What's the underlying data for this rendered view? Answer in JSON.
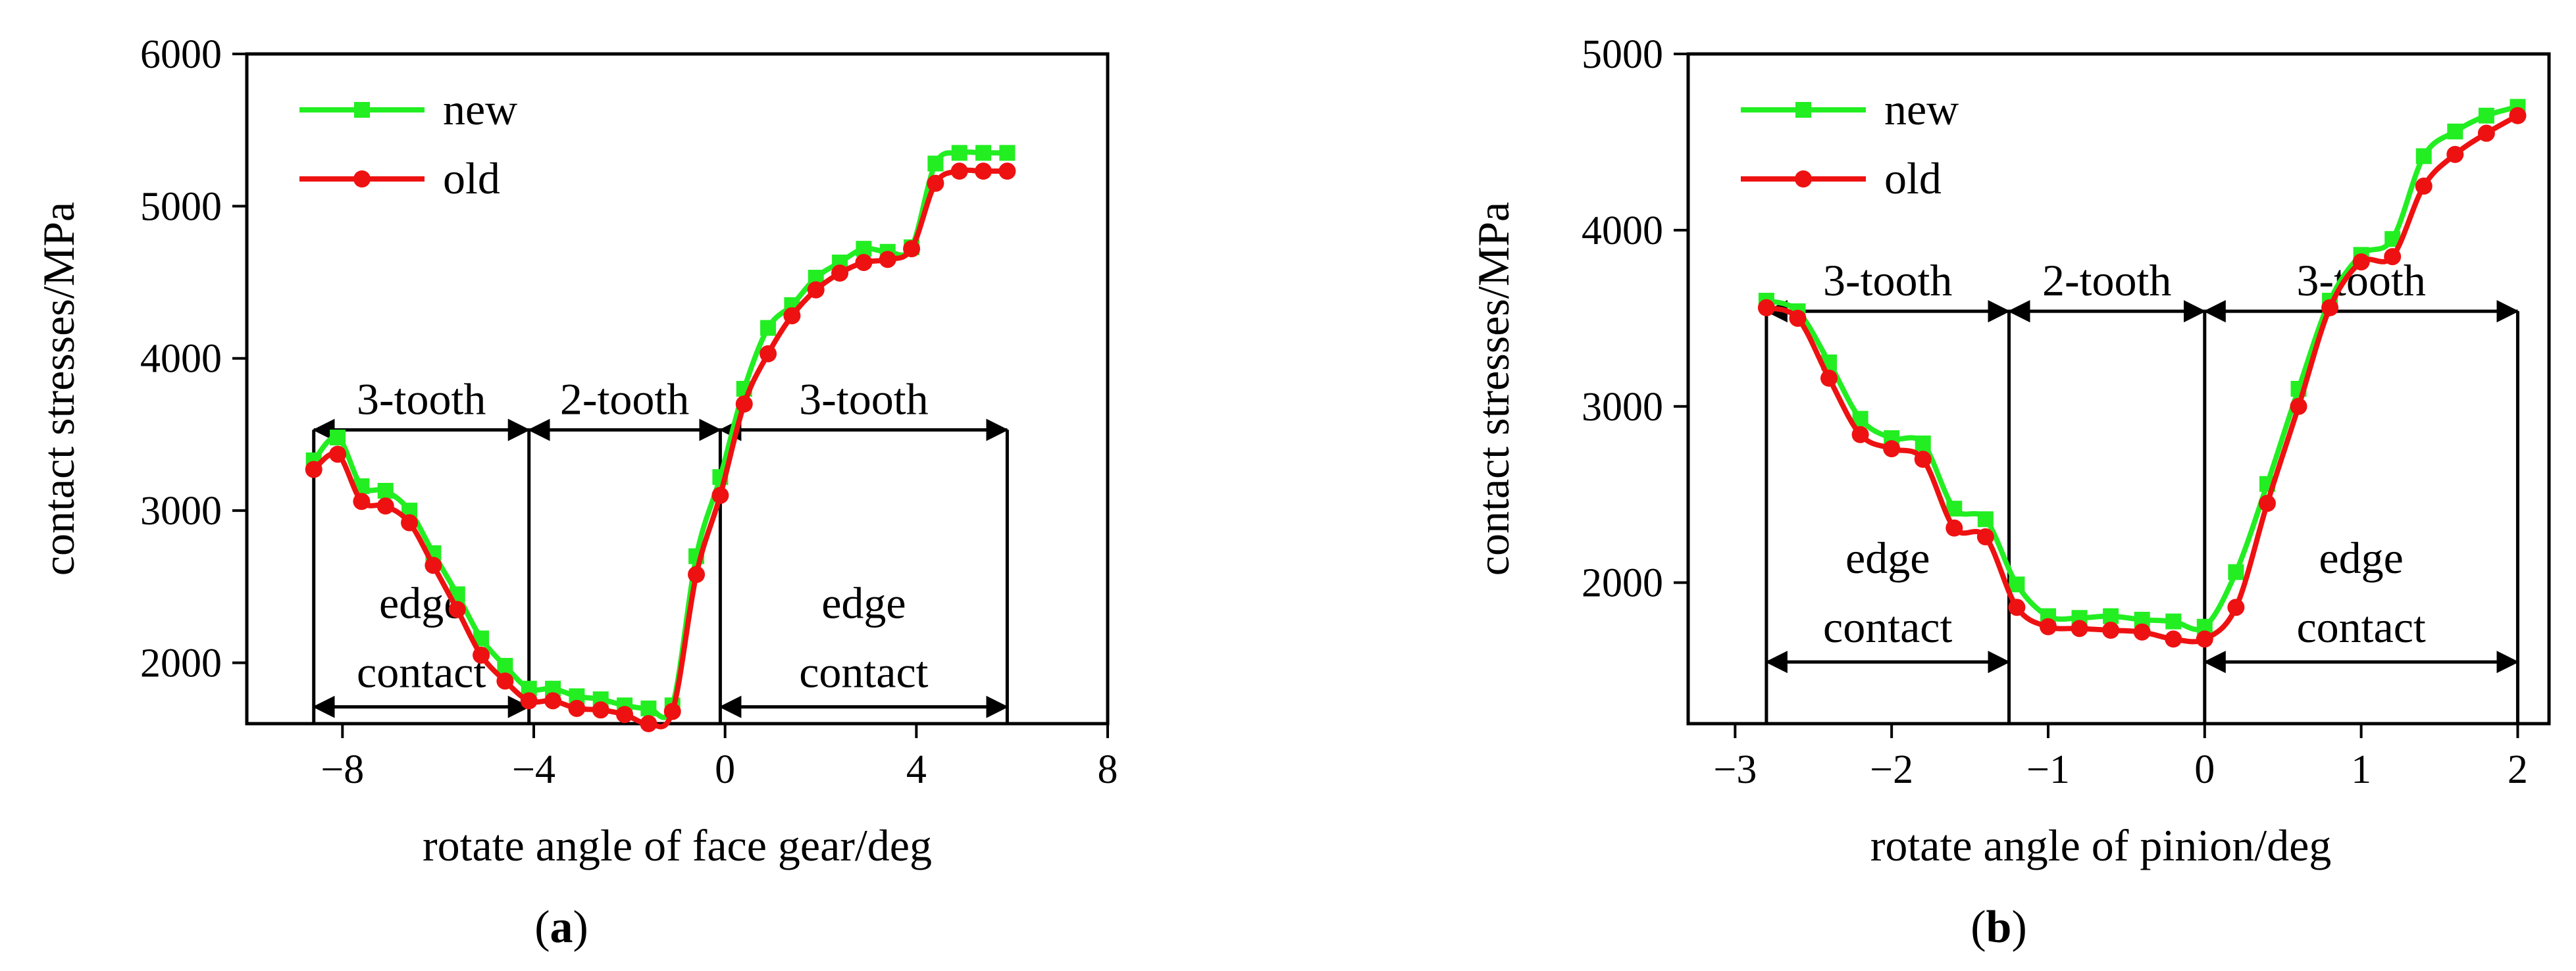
{
  "chart_data": [
    {
      "type": "line",
      "panel_label": "a",
      "xlabel": "rotate angle of face gear/deg",
      "ylabel": "contact stresses/MPa",
      "xlim": [
        -10,
        8
      ],
      "ylim": [
        1600,
        6000
      ],
      "xticks": [
        -8,
        -4,
        0,
        4,
        8
      ],
      "xtick_labels": [
        "−8",
        "−4",
        "0",
        "4",
        "8"
      ],
      "yticks": [
        2000,
        3000,
        4000,
        5000,
        6000
      ],
      "ytick_labels": [
        "2000",
        "3000",
        "4000",
        "5000",
        "6000"
      ],
      "legend": {
        "position": "top-left",
        "entries": [
          "new",
          "old"
        ]
      },
      "series": [
        {
          "name": "new",
          "color": "#22ee22",
          "marker": "square",
          "x": [
            -8.6,
            -8.1,
            -7.6,
            -7.1,
            -6.6,
            -6.1,
            -5.6,
            -5.1,
            -4.6,
            -4.1,
            -3.6,
            -3.1,
            -2.6,
            -2.1,
            -1.6,
            -1.1,
            -0.6,
            -0.1,
            0.4,
            0.9,
            1.4,
            1.9,
            2.4,
            2.9,
            3.4,
            3.9,
            4.4,
            4.9,
            5.4,
            5.9
          ],
          "y": [
            3330,
            3480,
            3160,
            3130,
            3000,
            2720,
            2450,
            2160,
            1980,
            1830,
            1830,
            1780,
            1760,
            1720,
            1700,
            1720,
            2700,
            3220,
            3800,
            4200,
            4350,
            4530,
            4630,
            4720,
            4700,
            4730,
            5280,
            5350,
            5350,
            5350
          ]
        },
        {
          "name": "old",
          "color": "#ee1111",
          "marker": "circle",
          "x": [
            -8.6,
            -8.1,
            -7.6,
            -7.1,
            -6.6,
            -6.1,
            -5.6,
            -5.1,
            -4.6,
            -4.1,
            -3.6,
            -3.1,
            -2.6,
            -2.1,
            -1.6,
            -1.1,
            -0.6,
            -0.1,
            0.4,
            0.9,
            1.4,
            1.9,
            2.4,
            2.9,
            3.4,
            3.9,
            4.4,
            4.9,
            5.4,
            5.9
          ],
          "y": [
            3270,
            3370,
            3060,
            3030,
            2920,
            2640,
            2350,
            2050,
            1880,
            1750,
            1750,
            1700,
            1690,
            1660,
            1600,
            1680,
            2580,
            3100,
            3700,
            4030,
            4280,
            4450,
            4560,
            4630,
            4650,
            4720,
            5150,
            5230,
            5230,
            5230
          ]
        }
      ],
      "annotations": {
        "boundaries_x": [
          -8.6,
          -4.1,
          -0.1,
          5.9
        ],
        "upper_zone_y": 3530,
        "lower_zone_y": 1710,
        "upper_labels": [
          "3-tooth",
          "2-tooth",
          "3-tooth"
        ],
        "lower_labels": [
          {
            "line1": "edge",
            "line2": "contact"
          },
          {
            "line1": "edge",
            "line2": "contact"
          }
        ]
      }
    },
    {
      "type": "line",
      "panel_label": "b",
      "xlabel": "rotate angle of pinion/deg",
      "ylabel": "contact stresses/MPa",
      "xlim": [
        -3.3,
        2.2
      ],
      "ylim": [
        1200,
        5000
      ],
      "xticks": [
        -3,
        -2,
        -1,
        0,
        1,
        2
      ],
      "xtick_labels": [
        "−3",
        "−2",
        "−1",
        "0",
        "1",
        "2"
      ],
      "yticks": [
        2000,
        3000,
        4000,
        5000
      ],
      "ytick_labels": [
        "2000",
        "3000",
        "4000",
        "5000"
      ],
      "legend": {
        "position": "top-left",
        "entries": [
          "new",
          "old"
        ]
      },
      "series": [
        {
          "name": "new",
          "color": "#22ee22",
          "marker": "square",
          "x": [
            -2.8,
            -2.6,
            -2.4,
            -2.2,
            -2.0,
            -1.8,
            -1.6,
            -1.4,
            -1.2,
            -1.0,
            -0.8,
            -0.6,
            -0.4,
            -0.2,
            0.0,
            0.2,
            0.4,
            0.6,
            0.8,
            1.0,
            1.2,
            1.4,
            1.6,
            1.8,
            2.0
          ],
          "y": [
            3600,
            3540,
            3250,
            2930,
            2820,
            2790,
            2420,
            2360,
            1990,
            1810,
            1800,
            1810,
            1790,
            1780,
            1750,
            2060,
            2560,
            3100,
            3600,
            3860,
            3950,
            4420,
            4560,
            4650,
            4700
          ]
        },
        {
          "name": "old",
          "color": "#ee1111",
          "marker": "circle",
          "x": [
            -2.8,
            -2.6,
            -2.4,
            -2.2,
            -2.0,
            -1.8,
            -1.6,
            -1.4,
            -1.2,
            -1.0,
            -0.8,
            -0.6,
            -0.4,
            -0.2,
            0.0,
            0.2,
            0.4,
            0.6,
            0.8,
            1.0,
            1.2,
            1.4,
            1.6,
            1.8,
            2.0
          ],
          "y": [
            3560,
            3500,
            3160,
            2840,
            2760,
            2700,
            2310,
            2260,
            1860,
            1750,
            1740,
            1730,
            1720,
            1680,
            1680,
            1860,
            2450,
            3000,
            3560,
            3820,
            3850,
            4250,
            4430,
            4550,
            4650
          ]
        }
      ],
      "annotations": {
        "boundaries_x": [
          -2.8,
          -1.25,
          0.0,
          2.0
        ],
        "upper_zone_y": 3540,
        "lower_zone_y": 1550,
        "upper_labels": [
          "3-tooth",
          "2-tooth",
          "3-tooth"
        ],
        "lower_labels": [
          {
            "line1": "edge",
            "line2": "contact"
          },
          {
            "line1": "edge",
            "line2": "contact"
          }
        ]
      }
    }
  ]
}
